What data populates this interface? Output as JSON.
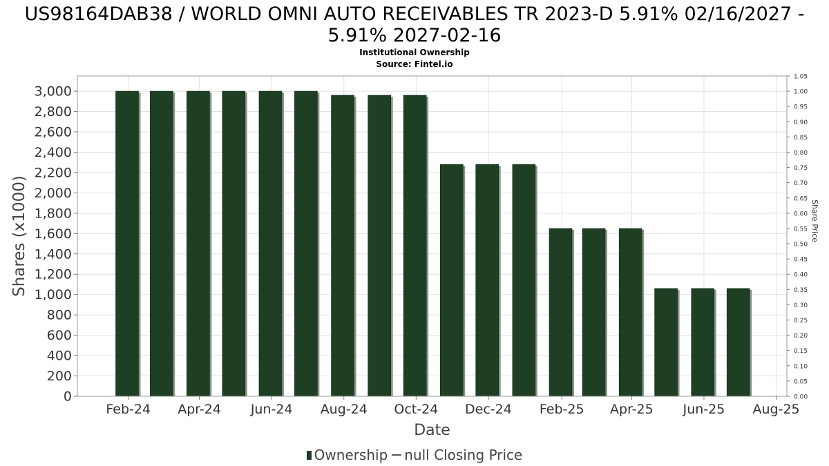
{
  "header": {
    "title_line1": "US98164DAB38 / WORLD OMNI AUTO RECEIVABLES TR 2023-D 5.91% 02/16/2027 -",
    "title_line2": "5.91% 2027-02-16",
    "subtitle": "Institutional Ownership",
    "source": "Source: Fintel.io"
  },
  "legend": {
    "ownership": "Ownership",
    "closing_price": "null Closing Price"
  },
  "colors": {
    "bar": "#1e3f24",
    "bar_shadow": "#8c948c",
    "grid": "#e2e2e2",
    "frame": "#999999"
  },
  "chart_data": {
    "type": "bar",
    "title": "US98164DAB38 / WORLD OMNI AUTO RECEIVABLES TR 2023-D 5.91% 02/16/2027 - 5.91% 2027-02-16",
    "xlabel": "Date",
    "ylabel": "Shares (x1000)",
    "y2label": "Share Price",
    "ylim": [
      0,
      3150
    ],
    "y2lim": [
      0,
      1.05
    ],
    "yticks": [
      0,
      200,
      400,
      600,
      800,
      1000,
      1200,
      1400,
      1600,
      1800,
      2000,
      2200,
      2400,
      2600,
      2800,
      3000
    ],
    "y2ticks": [
      "0.00",
      "0.05",
      "0.10",
      "0.15",
      "0.20",
      "0.25",
      "0.30",
      "0.35",
      "0.40",
      "0.45",
      "0.50",
      "0.55",
      "0.60",
      "0.65",
      "0.70",
      "0.75",
      "0.80",
      "0.85",
      "0.90",
      "0.95",
      "1.00",
      "1.05"
    ],
    "xticks": [
      "Feb-24",
      "Apr-24",
      "Jun-24",
      "Aug-24",
      "Oct-24",
      "Dec-24",
      "Feb-25",
      "Apr-25",
      "Jun-25",
      "Aug-25"
    ],
    "xrange": [
      "2023-12-20",
      "2025-08-10"
    ],
    "xtick_dates": [
      "2024-02-01",
      "2024-04-01",
      "2024-06-01",
      "2024-08-01",
      "2024-10-01",
      "2024-12-01",
      "2025-02-01",
      "2025-04-01",
      "2025-06-01",
      "2025-08-01"
    ],
    "series": [
      {
        "name": "Ownership",
        "dates": [
          "2024-01-31",
          "2024-02-29",
          "2024-03-31",
          "2024-04-30",
          "2024-05-31",
          "2024-06-30",
          "2024-07-31",
          "2024-08-31",
          "2024-09-30",
          "2024-10-31",
          "2024-11-30",
          "2024-12-31",
          "2025-01-31",
          "2025-02-28",
          "2025-03-31",
          "2025-04-30",
          "2025-05-31",
          "2025-06-30"
        ],
        "values": [
          3000,
          3000,
          3000,
          3000,
          3000,
          3000,
          2960,
          2960,
          2960,
          2280,
          2280,
          2280,
          1650,
          1650,
          1650,
          1060,
          1060,
          1060
        ]
      }
    ],
    "grid": true,
    "legend_position": "bottom-center"
  }
}
